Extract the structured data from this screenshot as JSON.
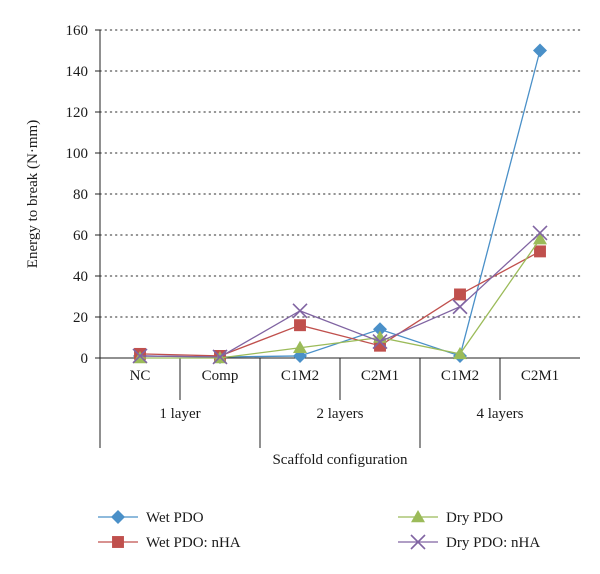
{
  "chart_data": {
    "type": "line",
    "title": "",
    "xlabel": "Scaffold configuration",
    "ylabel": "Energy to break (N·mm)",
    "ylim": [
      0,
      160
    ],
    "yticks": [
      0,
      20,
      40,
      60,
      80,
      100,
      120,
      140,
      160
    ],
    "categories": [
      "NC",
      "Comp",
      "C1M2",
      "C2M1",
      "C1M2",
      "C2M1"
    ],
    "groups": [
      {
        "label": "1 layer",
        "span": [
          0,
          1
        ]
      },
      {
        "label": "2 layers",
        "span": [
          2,
          3
        ]
      },
      {
        "label": "4 layers",
        "span": [
          4,
          5
        ]
      }
    ],
    "grid": "horizontal dotted",
    "legend_position": "bottom",
    "series": [
      {
        "name": "Wet PDO",
        "color": "#4a90c8",
        "marker": "diamond",
        "values": [
          1,
          0.5,
          1,
          14,
          1,
          150
        ]
      },
      {
        "name": "Wet PDO: nHA",
        "color": "#c0504d",
        "marker": "square",
        "values": [
          2,
          1,
          16,
          6,
          31,
          52
        ]
      },
      {
        "name": "Dry PDO",
        "color": "#9bbb59",
        "marker": "triangle",
        "values": [
          0,
          0,
          5,
          10,
          2,
          58
        ]
      },
      {
        "name": "Dry PDO: nHA",
        "color": "#8064a2",
        "marker": "x",
        "values": [
          1,
          0.5,
          23,
          8,
          25,
          61
        ]
      }
    ]
  }
}
